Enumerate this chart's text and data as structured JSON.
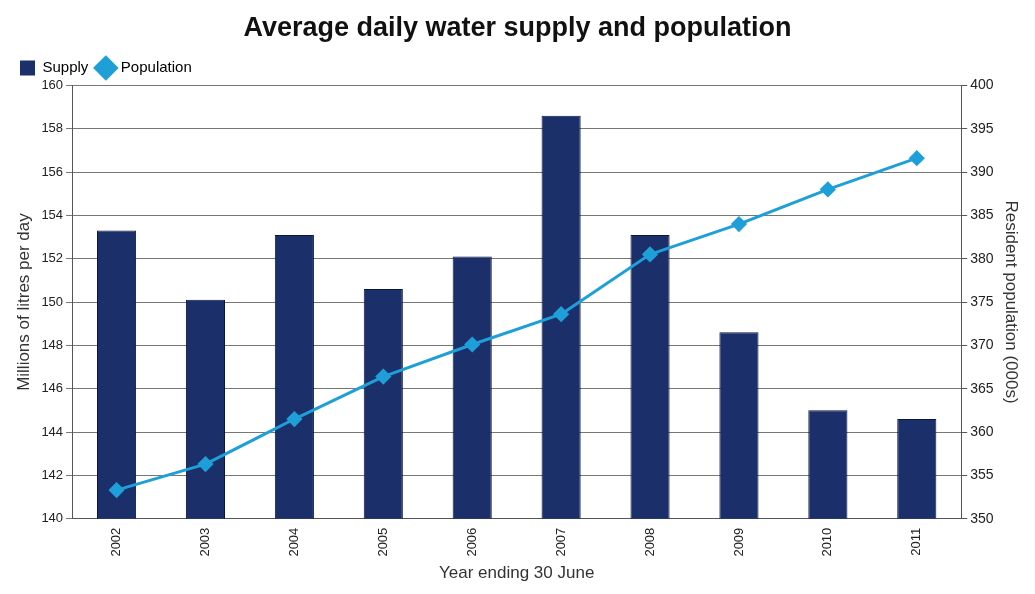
{
  "chart_data": {
    "type": "bar",
    "title": "Average daily water supply and population",
    "xlabel": "Year ending 30 June",
    "ylabel": "Millions of litres per day",
    "y2label": "Resident population (000s)",
    "categories": [
      "2002",
      "2003",
      "2004",
      "2005",
      "2006",
      "2007",
      "2008",
      "2009",
      "2010",
      "2011"
    ],
    "series": [
      {
        "name": "Supply",
        "color": "#1b2f6b",
        "values": [
          153.3,
          150.1,
          153.1,
          150.6,
          152.1,
          158.6,
          153.1,
          148.6,
          145.0,
          144.6
        ]
      },
      {
        "name": "Population",
        "type": "line",
        "axis": "y2",
        "color": "#1f9fd8",
        "values": [
          353.3,
          356.3,
          361.5,
          366.4,
          370.1,
          373.6,
          380.5,
          384.0,
          388.0,
          391.6
        ]
      }
    ],
    "ylim": [
      140,
      160
    ],
    "yticks": [
      140,
      142,
      144,
      146,
      148,
      150,
      152,
      154,
      156,
      158,
      160
    ],
    "y2lim": [
      350,
      400
    ],
    "y2ticks": [
      350,
      355,
      360,
      365,
      370,
      375,
      380,
      385,
      390,
      395,
      400
    ],
    "grid": "y",
    "legend": "top left",
    "marker": "diamond",
    "line_style": "solid"
  }
}
